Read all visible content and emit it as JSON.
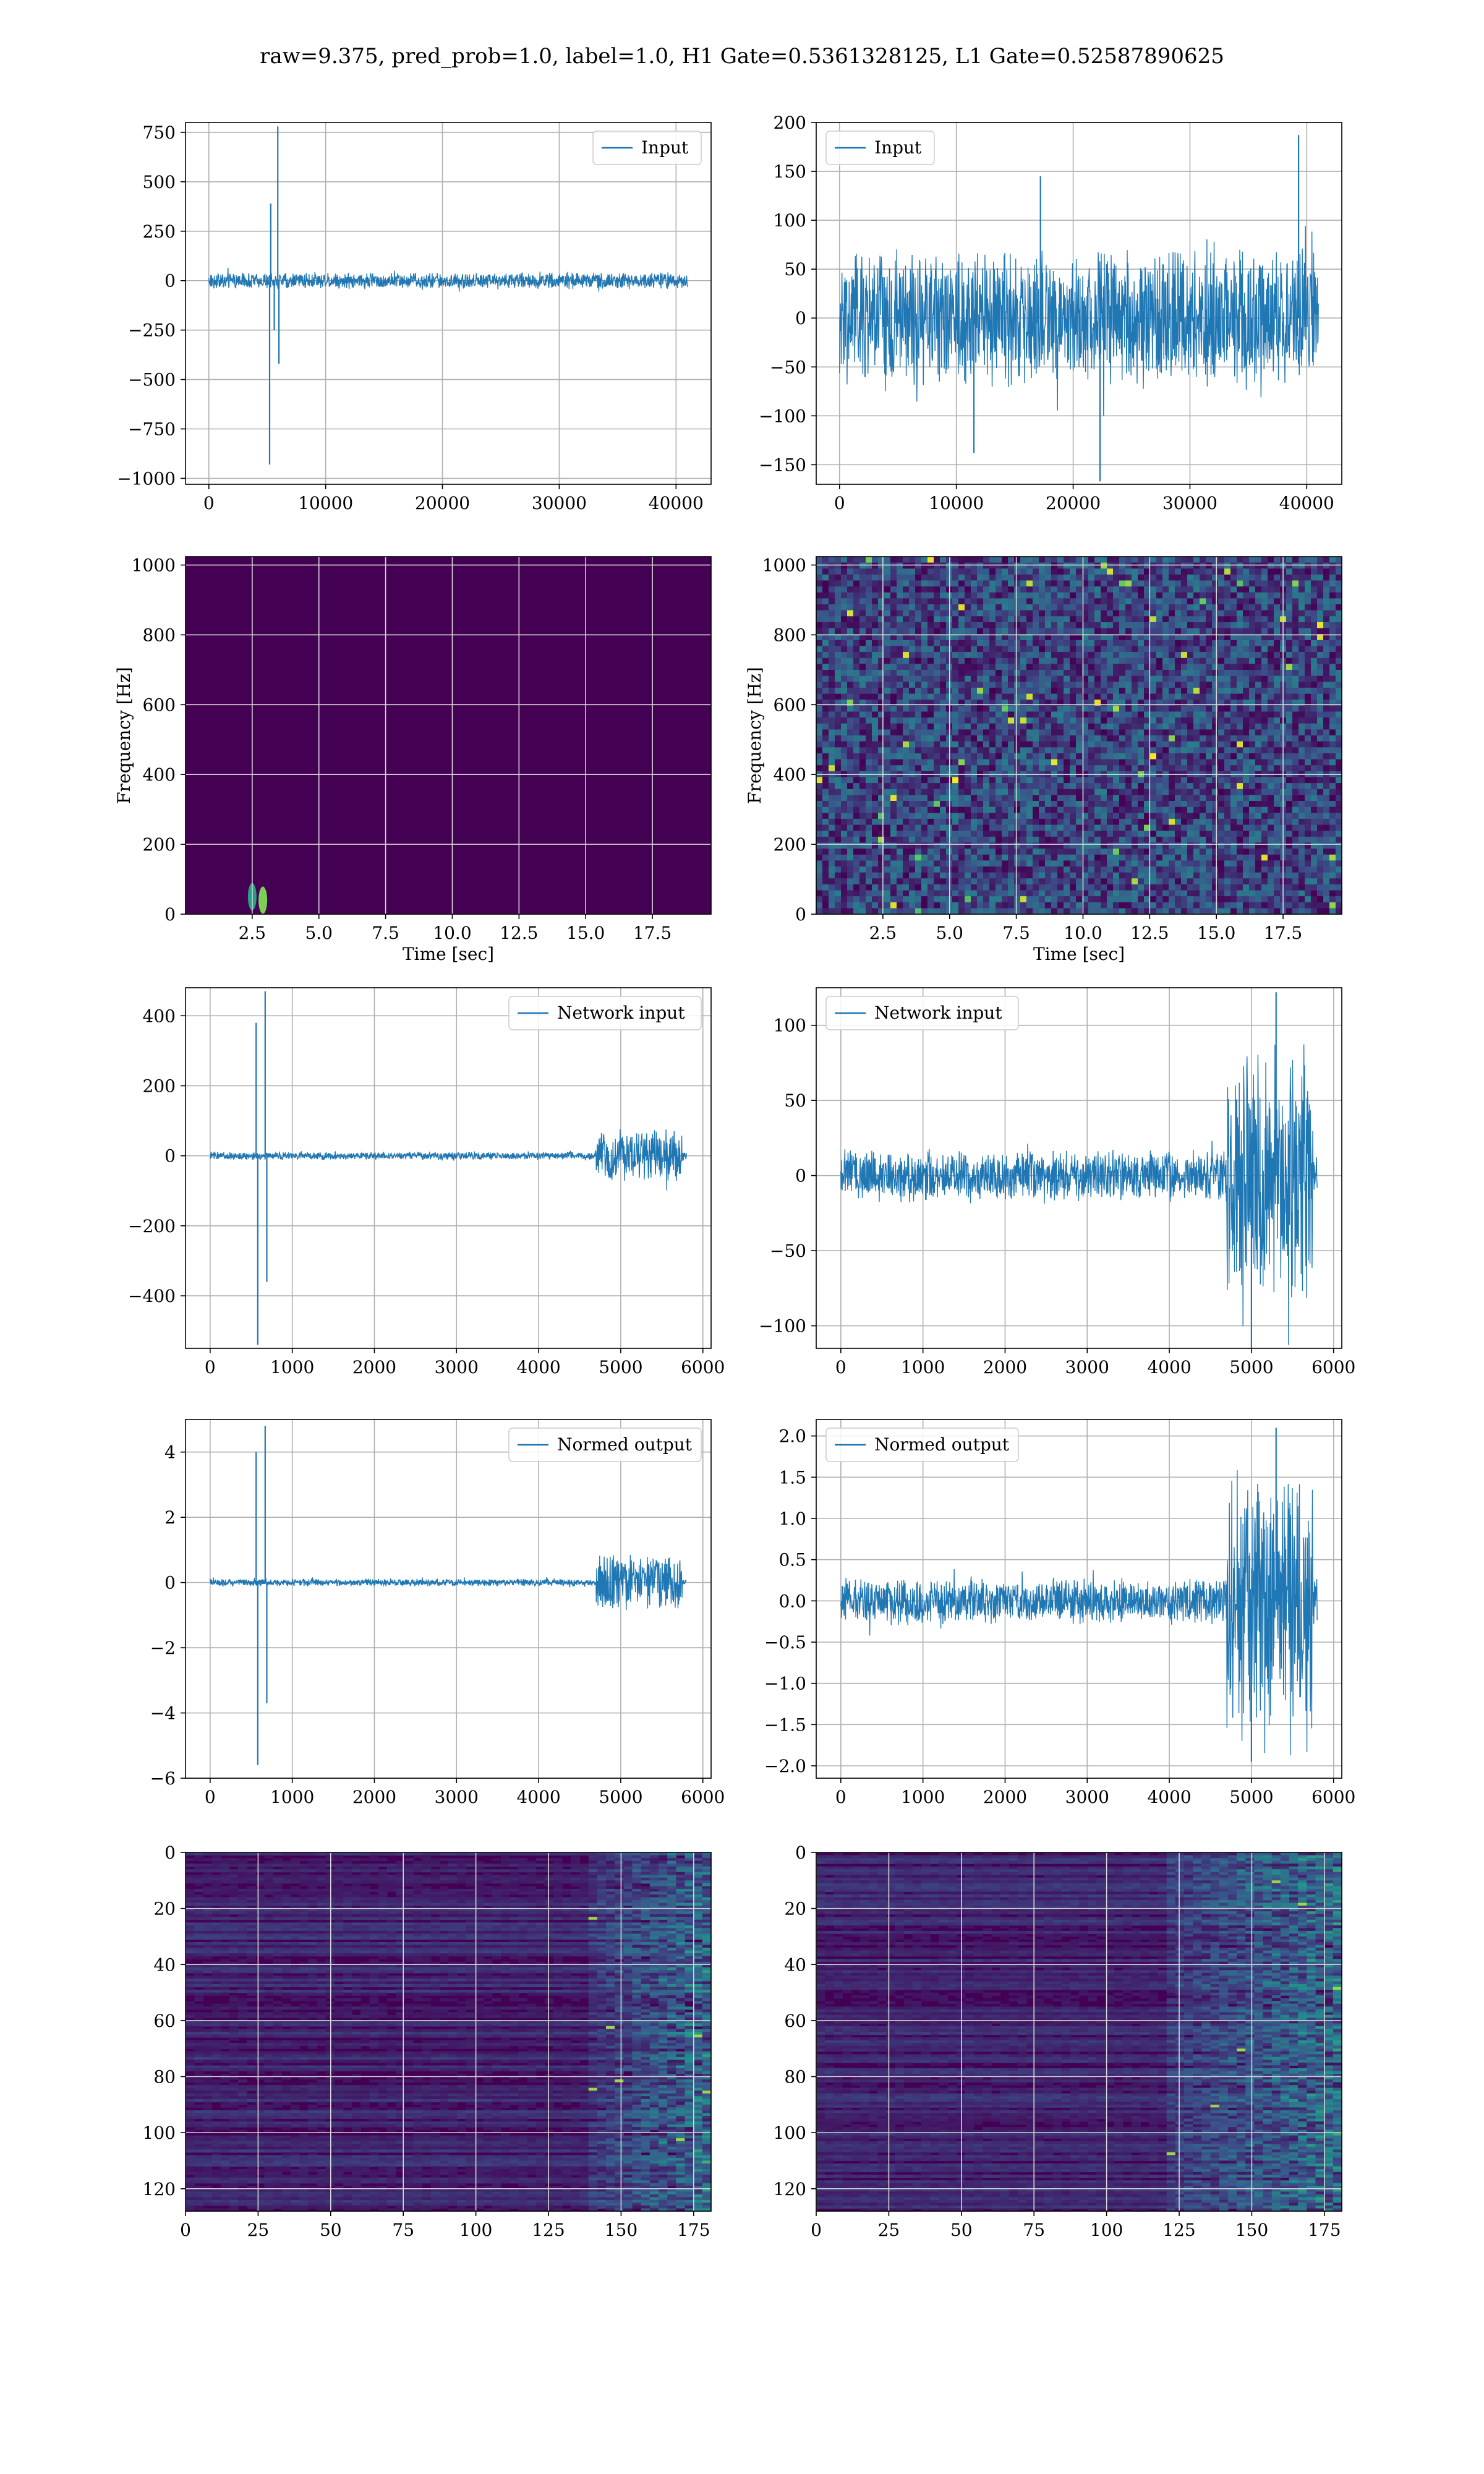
{
  "figure_title": "raw=9.375, pred_prob=1.0, label=1.0, H1 Gate=0.5361328125, L1 Gate=0.52587890625",
  "colors": {
    "line": "#1f77b4",
    "spec_bg": "#440154",
    "grid": "#b0b0b0"
  },
  "chart_data": [
    {
      "id": "input-h1",
      "type": "line",
      "legend": "Input",
      "xlim": [
        -2000,
        43000
      ],
      "ylim": [
        -1030,
        800
      ],
      "xticks": [
        0,
        10000,
        20000,
        30000,
        40000
      ],
      "yticks": [
        -1000,
        -750,
        -500,
        -250,
        0,
        250,
        500,
        750
      ],
      "grid": true,
      "legend_position": "upper right",
      "series": [
        {
          "x_range": [
            0,
            41000
          ],
          "noise_amplitude": 45,
          "spikes": [
            [
              5300,
              390
            ],
            [
              5200,
              -930
            ],
            [
              5900,
              780
            ],
            [
              6000,
              -420
            ],
            [
              5600,
              -250
            ]
          ]
        }
      ]
    },
    {
      "id": "input-l1",
      "type": "line",
      "legend": "Input",
      "xlim": [
        -2000,
        43000
      ],
      "ylim": [
        -170,
        200
      ],
      "xticks": [
        0,
        10000,
        20000,
        30000,
        40000
      ],
      "yticks": [
        -150,
        -100,
        -50,
        0,
        50,
        100,
        150,
        200
      ],
      "grid": true,
      "legend_position": "upper left",
      "series": [
        {
          "x_range": [
            0,
            41000
          ],
          "noise_amplitude": 75,
          "spikes": [
            [
              39300,
              187
            ],
            [
              22300,
              -167
            ],
            [
              11500,
              -138
            ],
            [
              17200,
              145
            ]
          ]
        }
      ]
    },
    {
      "id": "spec-h1",
      "type": "heatmap",
      "xlabel": "Time [sec]",
      "ylabel": "Frequency [Hz]",
      "xlim": [
        0,
        19.7
      ],
      "ylim": [
        0,
        1024
      ],
      "xticks": [
        2.5,
        5.0,
        7.5,
        10.0,
        12.5,
        15.0,
        17.5
      ],
      "yticks": [
        0,
        200,
        400,
        600,
        800,
        1000
      ],
      "grid": true,
      "hot_spots": [
        [
          2.5,
          50
        ],
        [
          2.9,
          40
        ]
      ],
      "background_texture": "uniform"
    },
    {
      "id": "spec-l1",
      "type": "heatmap",
      "xlabel": "Time [sec]",
      "ylabel": "Frequency [Hz]",
      "xlim": [
        0,
        19.7
      ],
      "ylim": [
        0,
        1024
      ],
      "xticks": [
        2.5,
        5.0,
        7.5,
        10.0,
        12.5,
        15.0,
        17.5
      ],
      "yticks": [
        0,
        200,
        400,
        600,
        800,
        1000
      ],
      "grid": true,
      "background_texture": "speckled"
    },
    {
      "id": "net-h1",
      "type": "line",
      "legend": "Network input",
      "xlim": [
        -300,
        6100
      ],
      "ylim": [
        -550,
        480
      ],
      "xticks": [
        0,
        1000,
        2000,
        3000,
        4000,
        5000,
        6000
      ],
      "yticks": [
        -400,
        -200,
        0,
        200,
        400
      ],
      "grid": true,
      "legend_position": "upper right",
      "series": [
        {
          "x_range": [
            0,
            5800
          ],
          "noise_amplitude": 12,
          "burst": [
            4700,
            5750,
            80
          ],
          "spikes": [
            [
              560,
              380
            ],
            [
              580,
              -540
            ],
            [
              670,
              470
            ],
            [
              690,
              -360
            ]
          ]
        }
      ]
    },
    {
      "id": "net-l1",
      "type": "line",
      "legend": "Network input",
      "xlim": [
        -300,
        6100
      ],
      "ylim": [
        -115,
        125
      ],
      "xticks": [
        0,
        1000,
        2000,
        3000,
        4000,
        5000,
        6000
      ],
      "yticks": [
        -100,
        -50,
        0,
        50,
        100
      ],
      "grid": true,
      "legend_position": "upper left",
      "series": [
        {
          "x_range": [
            0,
            5800
          ],
          "noise_amplitude": 18,
          "burst": [
            4700,
            5750,
            90
          ],
          "spikes": [
            [
              5300,
              122
            ],
            [
              5000,
              -115
            ]
          ]
        }
      ]
    },
    {
      "id": "norm-h1",
      "type": "line",
      "legend": "Normed output",
      "xlim": [
        -300,
        6100
      ],
      "ylim": [
        -6,
        5
      ],
      "xticks": [
        0,
        1000,
        2000,
        3000,
        4000,
        5000,
        6000
      ],
      "yticks": [
        -6,
        -4,
        -2,
        0,
        2,
        4
      ],
      "grid": true,
      "legend_position": "upper right",
      "series": [
        {
          "x_range": [
            0,
            5800
          ],
          "noise_amplitude": 0.12,
          "burst": [
            4700,
            5750,
            0.9
          ],
          "spikes": [
            [
              560,
              4.0
            ],
            [
              580,
              -5.6
            ],
            [
              670,
              4.8
            ],
            [
              690,
              -3.7
            ]
          ]
        }
      ]
    },
    {
      "id": "norm-l1",
      "type": "line",
      "legend": "Normed output",
      "xlim": [
        -300,
        6100
      ],
      "ylim": [
        -2.15,
        2.2
      ],
      "xticks": [
        0,
        1000,
        2000,
        3000,
        4000,
        5000,
        6000
      ],
      "yticks": [
        -2.0,
        -1.5,
        -1.0,
        -0.5,
        0.0,
        0.5,
        1.0,
        1.5,
        2.0
      ],
      "grid": true,
      "legend_position": "upper left",
      "series": [
        {
          "x_range": [
            0,
            5800
          ],
          "noise_amplitude": 0.3,
          "burst": [
            4700,
            5750,
            1.6
          ],
          "spikes": [
            [
              5300,
              2.1
            ],
            [
              5000,
              -1.95
            ]
          ]
        }
      ]
    },
    {
      "id": "feat-h1",
      "type": "heatmap",
      "xlim": [
        0,
        181
      ],
      "ylim": [
        128,
        0
      ],
      "xticks": [
        0,
        25,
        50,
        75,
        100,
        125,
        150,
        175
      ],
      "yticks": [
        0,
        20,
        40,
        60,
        80,
        100,
        120
      ],
      "grid": true,
      "background_texture": "rows",
      "bright_x_range": [
        140,
        181
      ]
    },
    {
      "id": "feat-l1",
      "type": "heatmap",
      "xlim": [
        0,
        181
      ],
      "ylim": [
        128,
        0
      ],
      "xticks": [
        0,
        25,
        50,
        75,
        100,
        125,
        150,
        175
      ],
      "yticks": [
        0,
        20,
        40,
        60,
        80,
        100,
        120
      ],
      "grid": true,
      "background_texture": "rows",
      "bright_x_range": [
        120,
        181
      ]
    }
  ]
}
